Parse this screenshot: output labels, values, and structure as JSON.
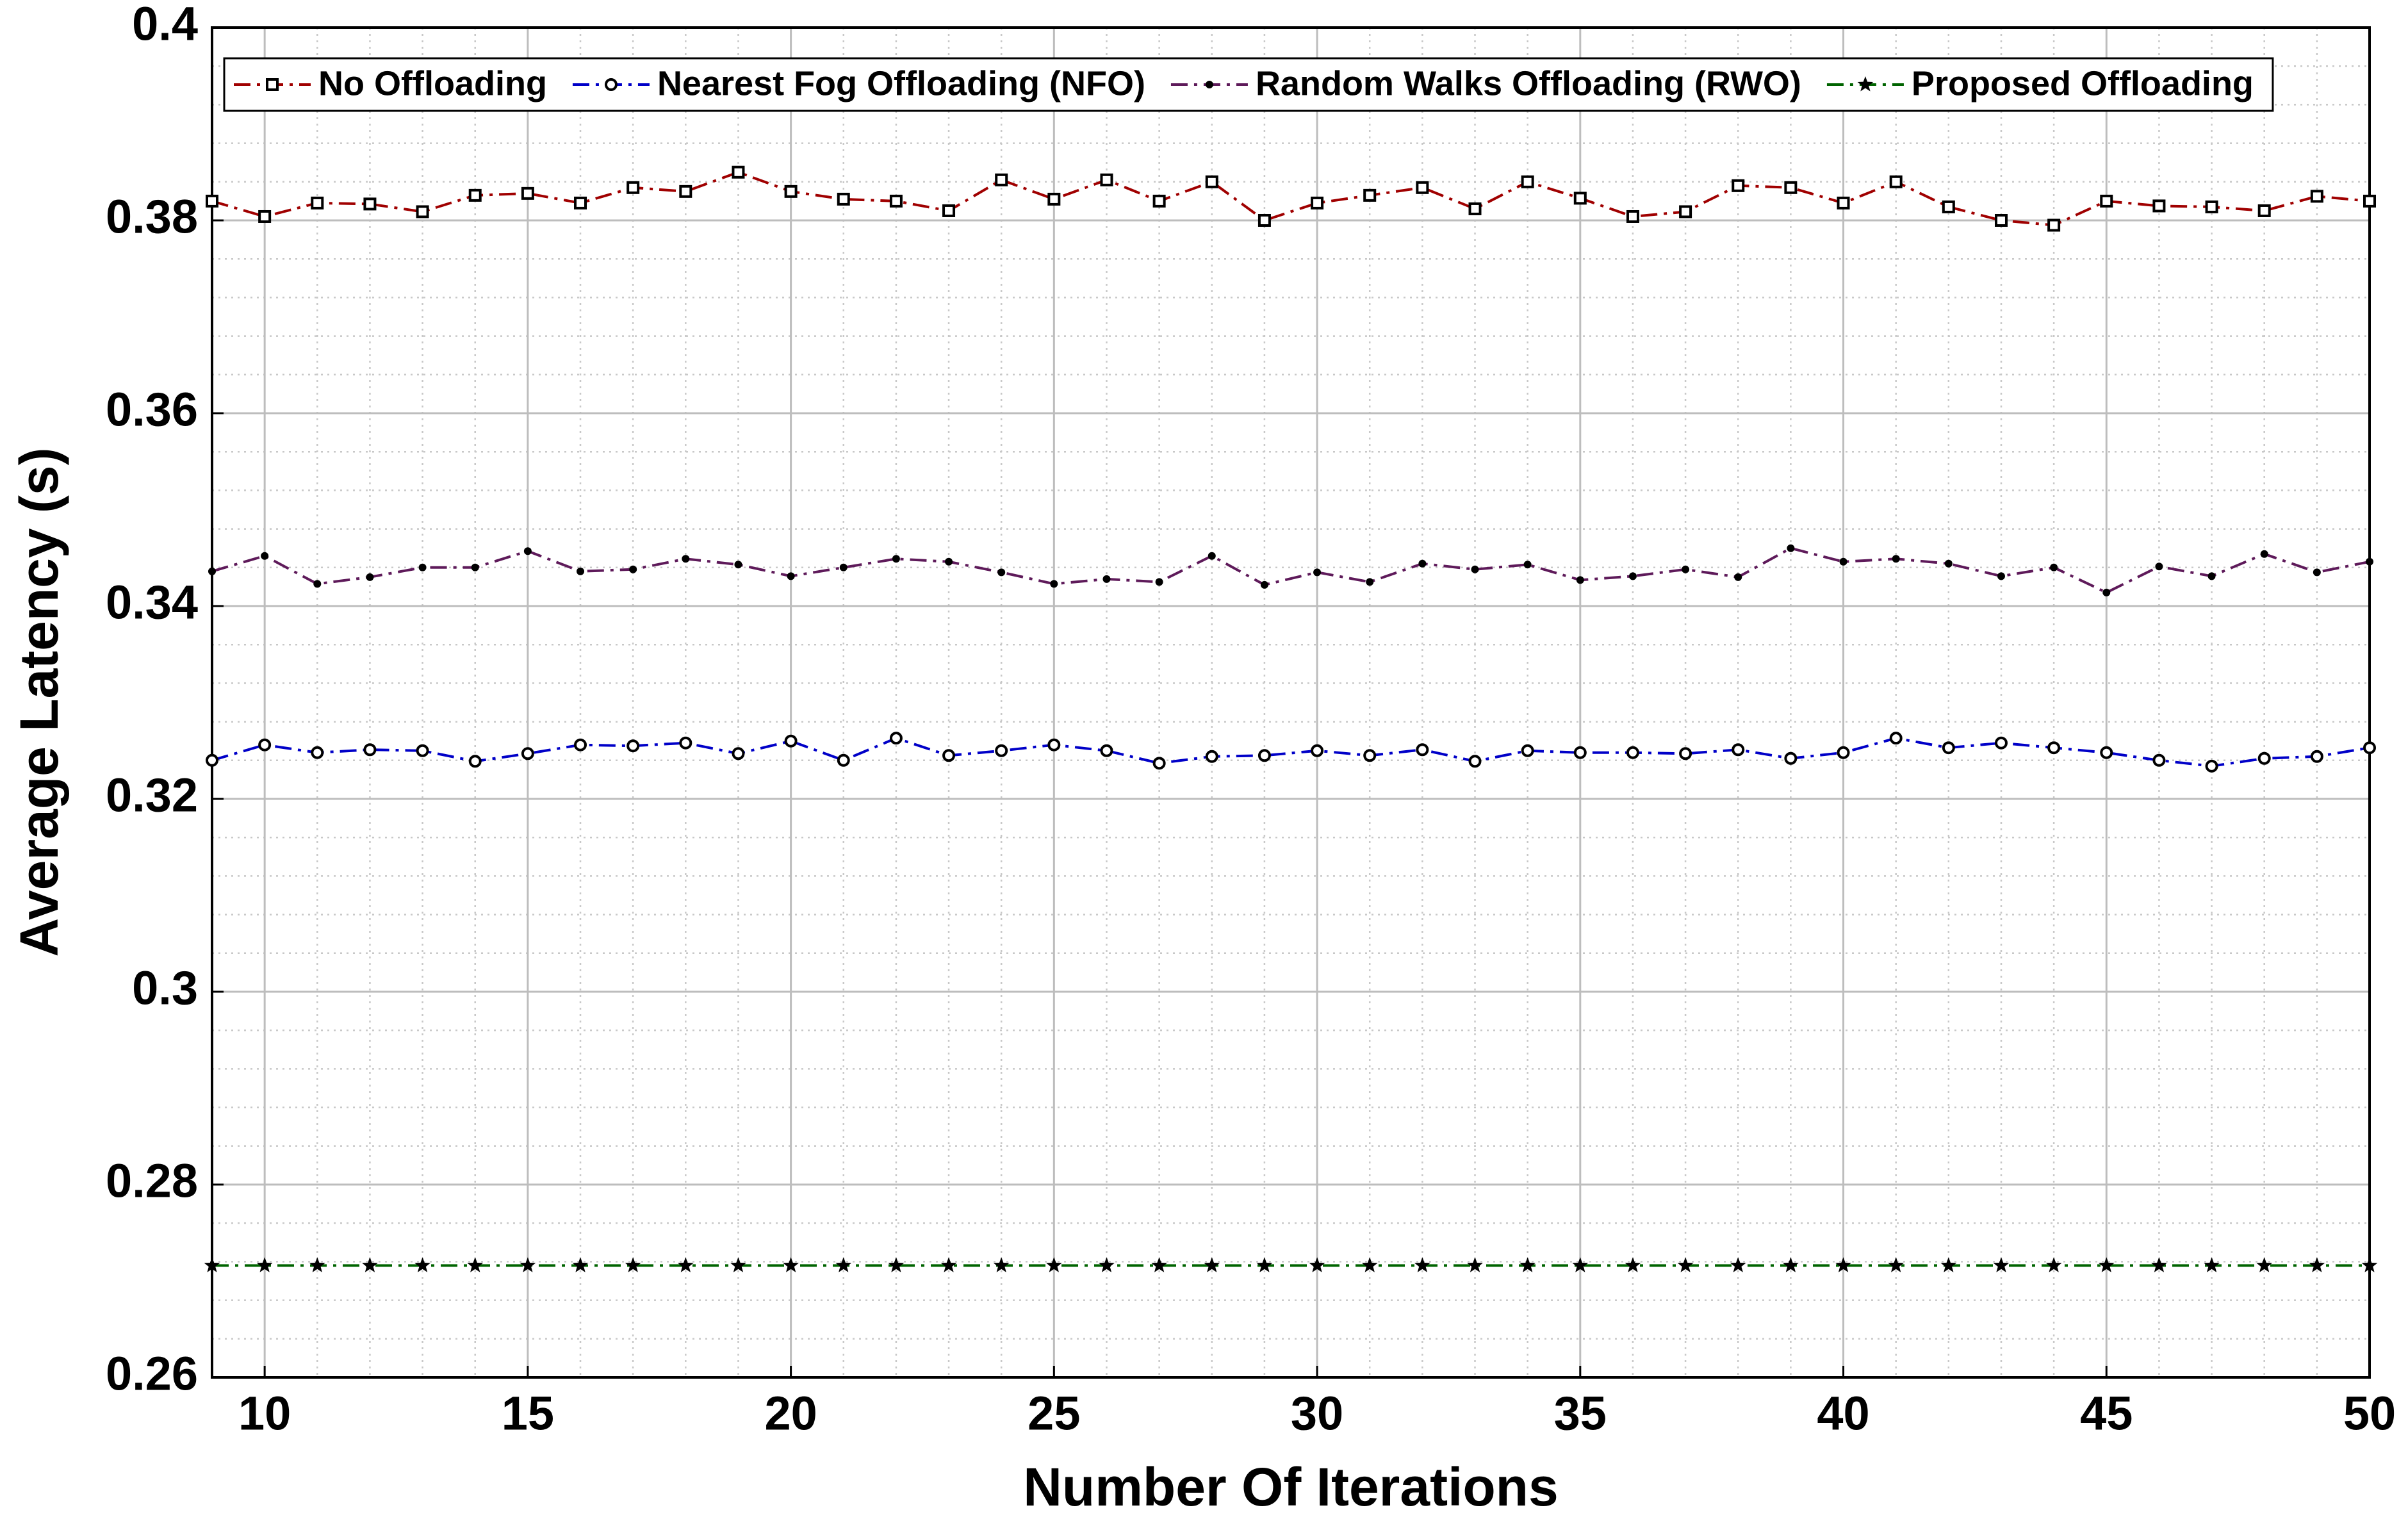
{
  "chart_data": {
    "type": "line",
    "xlabel": "Number Of Iterations",
    "ylabel": "Average Latency (s)",
    "x": [
      9,
      10,
      11,
      12,
      13,
      14,
      15,
      16,
      17,
      18,
      19,
      20,
      21,
      22,
      23,
      24,
      25,
      26,
      27,
      28,
      29,
      30,
      31,
      32,
      33,
      34,
      35,
      36,
      37,
      38,
      39,
      40,
      41,
      42,
      43,
      44,
      45,
      46,
      47,
      48,
      49,
      50
    ],
    "xlim": [
      9,
      50
    ],
    "xticks": [
      10,
      15,
      20,
      25,
      30,
      35,
      40,
      45,
      50
    ],
    "ylim": [
      0.26,
      0.4
    ],
    "yticks": [
      0.26,
      0.28,
      0.3,
      0.32,
      0.34,
      0.36,
      0.38,
      0.4
    ],
    "grid": true,
    "legend": "top",
    "series": [
      {
        "name": "No Offloading",
        "color": "#a00000",
        "marker": "square",
        "values": [
          0.382,
          0.3804,
          0.3818,
          0.3817,
          0.3809,
          0.3826,
          0.3828,
          0.3818,
          0.3834,
          0.383,
          0.385,
          0.383,
          0.3822,
          0.382,
          0.381,
          0.3842,
          0.3822,
          0.3842,
          0.382,
          0.384,
          0.38,
          0.3818,
          0.3826,
          0.3834,
          0.3812,
          0.384,
          0.3823,
          0.3804,
          0.3809,
          0.3836,
          0.3834,
          0.3818,
          0.384,
          0.3814,
          0.38,
          0.3795,
          0.382,
          0.3815,
          0.3814,
          0.381,
          0.3825,
          0.382
        ]
      },
      {
        "name": "Nearest Fog Offloading (NFO)",
        "color": "#0000c8",
        "marker": "circle",
        "values": [
          0.324,
          0.3256,
          0.3248,
          0.3251,
          0.325,
          0.3239,
          0.3247,
          0.3256,
          0.3255,
          0.3258,
          0.3247,
          0.326,
          0.324,
          0.3263,
          0.3245,
          0.325,
          0.3256,
          0.325,
          0.3237,
          0.3244,
          0.3245,
          0.325,
          0.3245,
          0.3251,
          0.3239,
          0.325,
          0.3248,
          0.3248,
          0.3247,
          0.3251,
          0.3242,
          0.3248,
          0.3263,
          0.3253,
          0.3258,
          0.3253,
          0.3248,
          0.324,
          0.3234,
          0.3242,
          0.3244,
          0.3253
        ]
      },
      {
        "name": "Random Walks Offloading (RWO)",
        "color": "#5e1a5a",
        "marker": "dot",
        "values": [
          0.3436,
          0.3452,
          0.3423,
          0.343,
          0.344,
          0.344,
          0.3457,
          0.3436,
          0.3438,
          0.3449,
          0.3443,
          0.3431,
          0.344,
          0.3449,
          0.3446,
          0.3435,
          0.3423,
          0.3428,
          0.3425,
          0.3452,
          0.3422,
          0.3435,
          0.3425,
          0.3444,
          0.3438,
          0.3443,
          0.3427,
          0.3431,
          0.3438,
          0.343,
          0.346,
          0.3446,
          0.3449,
          0.3444,
          0.3431,
          0.344,
          0.3414,
          0.3441,
          0.3431,
          0.3454,
          0.3435,
          0.3446
        ]
      },
      {
        "name": "Proposed Offloading",
        "color": "#006400",
        "marker": "star",
        "values": [
          0.2716,
          0.2716,
          0.2716,
          0.2716,
          0.2716,
          0.2716,
          0.2716,
          0.2716,
          0.2716,
          0.2716,
          0.2716,
          0.2716,
          0.2716,
          0.2716,
          0.2716,
          0.2716,
          0.2716,
          0.2716,
          0.2716,
          0.2716,
          0.2716,
          0.2716,
          0.2716,
          0.2716,
          0.2716,
          0.2716,
          0.2716,
          0.2716,
          0.2716,
          0.2716,
          0.2716,
          0.2716,
          0.2716,
          0.2716,
          0.2716,
          0.2716,
          0.2716,
          0.2716,
          0.2716,
          0.2716,
          0.2716,
          0.2716
        ]
      }
    ]
  }
}
